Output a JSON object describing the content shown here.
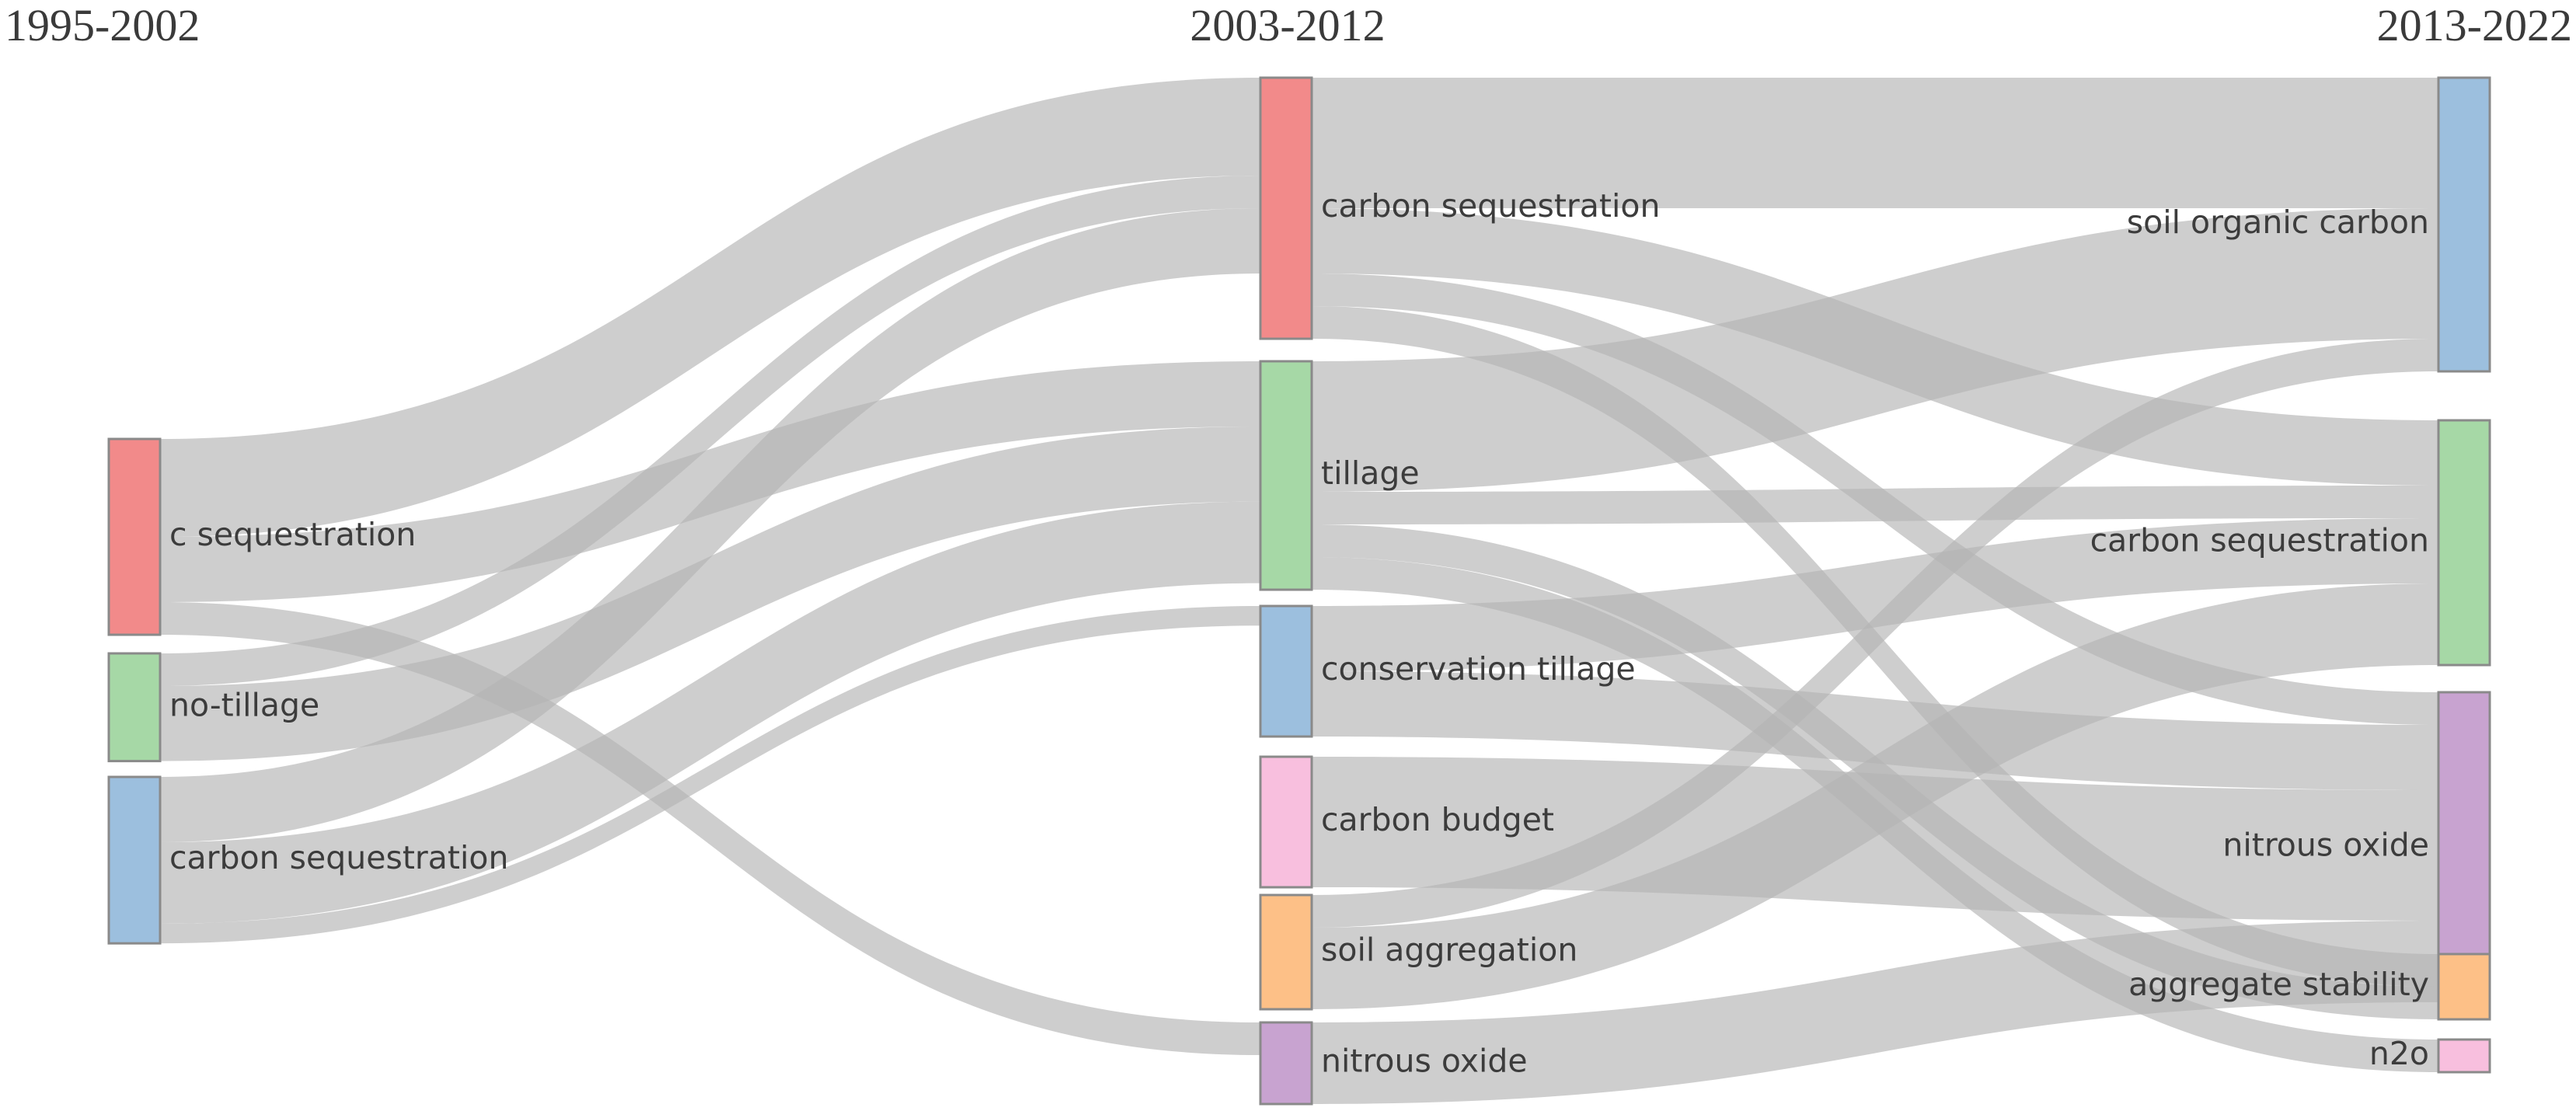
{
  "periods": [
    "1995-2002",
    "2003-2012",
    "2013-2022"
  ],
  "colors": {
    "red": "#f28a8a",
    "green": "#a6d8a6",
    "blue": "#9cbfde",
    "pink": "#f8bfde",
    "orange": "#fdc087",
    "purple": "#c8a3d0",
    "flow": "#b4b4b4"
  },
  "nodes": [
    {
      "id": "p1_c_seq",
      "column": 0,
      "label": "c sequestration",
      "color": "red"
    },
    {
      "id": "p1_notill",
      "column": 0,
      "label": "no-tillage",
      "color": "green"
    },
    {
      "id": "p1_cs",
      "column": 0,
      "label": "carbon sequestration",
      "color": "blue"
    },
    {
      "id": "p2_cs",
      "column": 1,
      "label": "carbon sequestration",
      "color": "red"
    },
    {
      "id": "p2_till",
      "column": 1,
      "label": "tillage",
      "color": "green"
    },
    {
      "id": "p2_constill",
      "column": 1,
      "label": "conservation tillage",
      "color": "blue"
    },
    {
      "id": "p2_cbudget",
      "column": 1,
      "label": "carbon budget",
      "color": "pink"
    },
    {
      "id": "p2_soilagg",
      "column": 1,
      "label": "soil aggregation",
      "color": "orange"
    },
    {
      "id": "p2_n2o",
      "column": 1,
      "label": "nitrous oxide",
      "color": "purple"
    },
    {
      "id": "p3_soc",
      "column": 2,
      "label": "soil organic carbon",
      "color": "blue"
    },
    {
      "id": "p3_cs",
      "column": 2,
      "label": "carbon sequestration",
      "color": "green"
    },
    {
      "id": "p3_n2o",
      "column": 2,
      "label": "nitrous oxide",
      "color": "purple"
    },
    {
      "id": "p3_aggstab",
      "column": 2,
      "label": "aggregate stability",
      "color": "orange"
    },
    {
      "id": "p3_n2o_b",
      "column": 2,
      "label": "n2o",
      "color": "pink"
    }
  ],
  "links": [
    {
      "source": "p1_c_seq",
      "target": "p2_cs",
      "value": 6
    },
    {
      "source": "p1_c_seq",
      "target": "p2_till",
      "value": 4
    },
    {
      "source": "p1_c_seq",
      "target": "p2_n2o",
      "value": 2
    },
    {
      "source": "p1_notill",
      "target": "p2_cs",
      "value": 2
    },
    {
      "source": "p1_notill",
      "target": "p2_till",
      "value": 4.6
    },
    {
      "source": "p1_cs",
      "target": "p2_cs",
      "value": 4
    },
    {
      "source": "p1_cs",
      "target": "p2_till",
      "value": 5
    },
    {
      "source": "p1_cs",
      "target": "p2_constill",
      "value": 1.2
    },
    {
      "source": "p2_cs",
      "target": "p3_soc",
      "value": 8
    },
    {
      "source": "p2_cs",
      "target": "p3_cs",
      "value": 4
    },
    {
      "source": "p2_cs",
      "target": "p3_n2o",
      "value": 2
    },
    {
      "source": "p2_cs",
      "target": "p3_aggstab",
      "value": 2
    },
    {
      "source": "p2_till",
      "target": "p3_soc",
      "value": 8
    },
    {
      "source": "p2_till",
      "target": "p3_cs",
      "value": 2
    },
    {
      "source": "p2_till",
      "target": "p3_n2o_b",
      "value": 2
    },
    {
      "source": "p2_till",
      "target": "p3_aggstab",
      "value": 2
    },
    {
      "source": "p2_constill",
      "target": "p3_cs",
      "value": 4
    },
    {
      "source": "p2_constill",
      "target": "p3_n2o",
      "value": 4
    },
    {
      "source": "p2_cbudget",
      "target": "p3_n2o",
      "value": 8
    },
    {
      "source": "p2_soilagg",
      "target": "p3_soc",
      "value": 2
    },
    {
      "source": "p2_soilagg",
      "target": "p3_cs",
      "value": 5
    },
    {
      "source": "p2_n2o",
      "target": "p3_n2o",
      "value": 5
    }
  ]
}
